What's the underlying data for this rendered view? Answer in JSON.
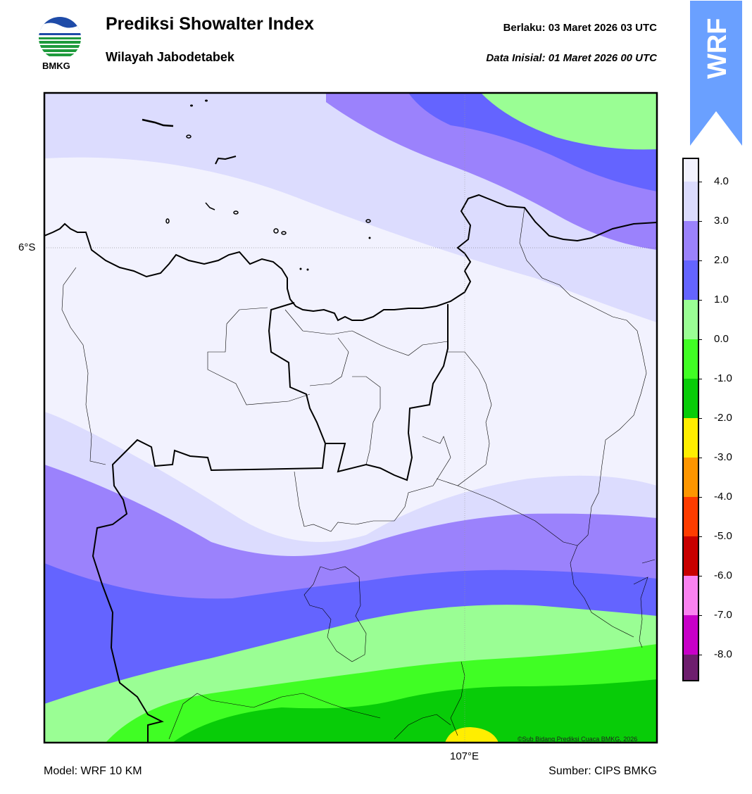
{
  "header": {
    "title": "Prediksi Showalter Index",
    "subtitle": "Wilayah Jabodetabek",
    "valid": "Berlaku:  03 Maret 2026 03 UTC",
    "init": "Data Inisial:  01 Maret 2026 00 UTC",
    "logo_text": "BMKG",
    "badge_text": "WRF"
  },
  "footer": {
    "model": "Model: WRF 10 KM",
    "source": "Sumber: CIPS BMKG",
    "copyright": "©Sub Bidang Prediksi Cuaca BMKG, 2026"
  },
  "map": {
    "lat_label": "6°S",
    "lon_label": "107°E"
  },
  "colorbar": {
    "labels": [
      "4.0",
      "3.0",
      "2.0",
      "1.0",
      "0.0",
      "-1.0",
      "-2.0",
      "-3.0",
      "-4.0",
      "-5.0",
      "-6.0",
      "-7.0",
      "-8.0"
    ],
    "colors": [
      "#f2f2fe",
      "#dcdcfe",
      "#9b82fc",
      "#6464ff",
      "#9afe94",
      "#40fe24",
      "#08cc08",
      "#ffee00",
      "#fe9600",
      "#fe3c00",
      "#c80000",
      "#fa82f0",
      "#c800c8",
      "#6e1e6e"
    ]
  },
  "colors": {
    "badge": "#6aa0ff",
    "logo_blue": "#1e4ba8",
    "logo_green": "#1e9a3c"
  }
}
